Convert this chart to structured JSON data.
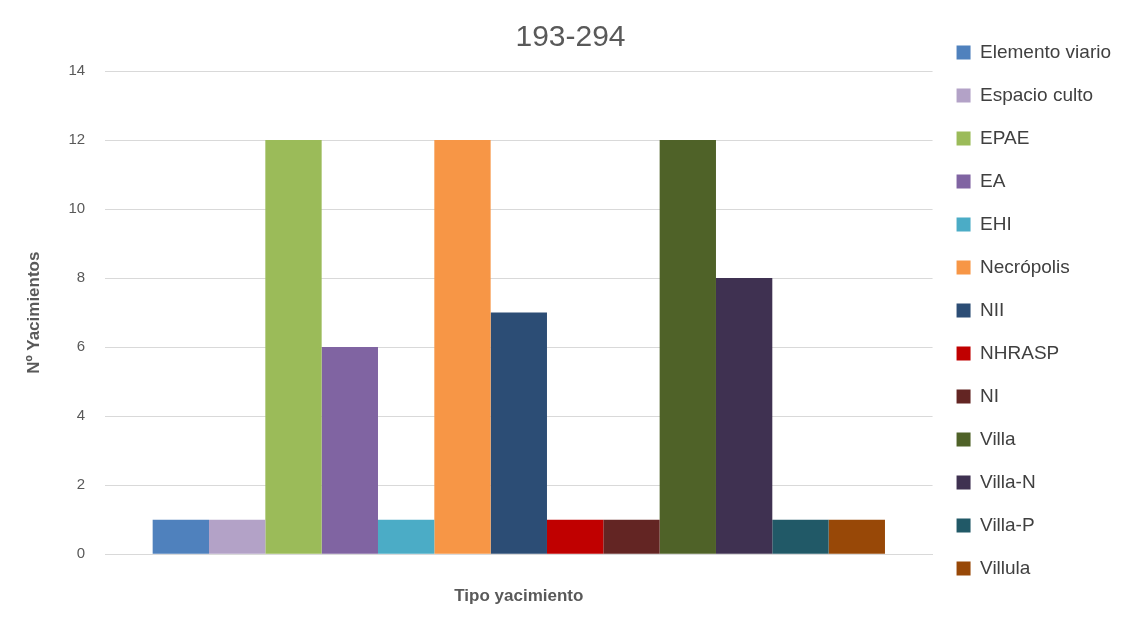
{
  "chart_data": {
    "type": "bar",
    "title": "193-294",
    "xlabel": "Tipo yacimiento",
    "ylabel": "Nº Yacimientos",
    "categories": [
      null
    ],
    "series": [
      {
        "name": "Elemento viario",
        "color": "#4f81bd",
        "values": [
          1
        ]
      },
      {
        "name": "Espacio culto",
        "color": "#b3a2c7",
        "values": [
          1
        ]
      },
      {
        "name": "EPAE",
        "color": "#9bbb59",
        "values": [
          12
        ]
      },
      {
        "name": "EA",
        "color": "#8064a2",
        "values": [
          6
        ]
      },
      {
        "name": "EHI",
        "color": "#4bacc6",
        "values": [
          1
        ]
      },
      {
        "name": "Necrópolis",
        "color": "#f79646",
        "values": [
          12
        ]
      },
      {
        "name": "NII",
        "color": "#2c4d75",
        "values": [
          7
        ]
      },
      {
        "name": "NHRASP",
        "color": "#c00000",
        "values": [
          1
        ]
      },
      {
        "name": "NI",
        "color": "#632523",
        "values": [
          1
        ]
      },
      {
        "name": "Villa",
        "color": "#4f6228",
        "values": [
          12
        ]
      },
      {
        "name": "Villa-N",
        "color": "#3f3151",
        "values": [
          8
        ]
      },
      {
        "name": "Villa-P",
        "color": "#215967",
        "values": [
          1
        ]
      },
      {
        "name": "Villula",
        "color": "#984807",
        "values": [
          1
        ]
      }
    ],
    "ylim": [
      0,
      14
    ],
    "yticks": [
      0,
      2,
      4,
      6,
      8,
      10,
      12,
      14
    ],
    "grid": "y",
    "legend": "right"
  }
}
